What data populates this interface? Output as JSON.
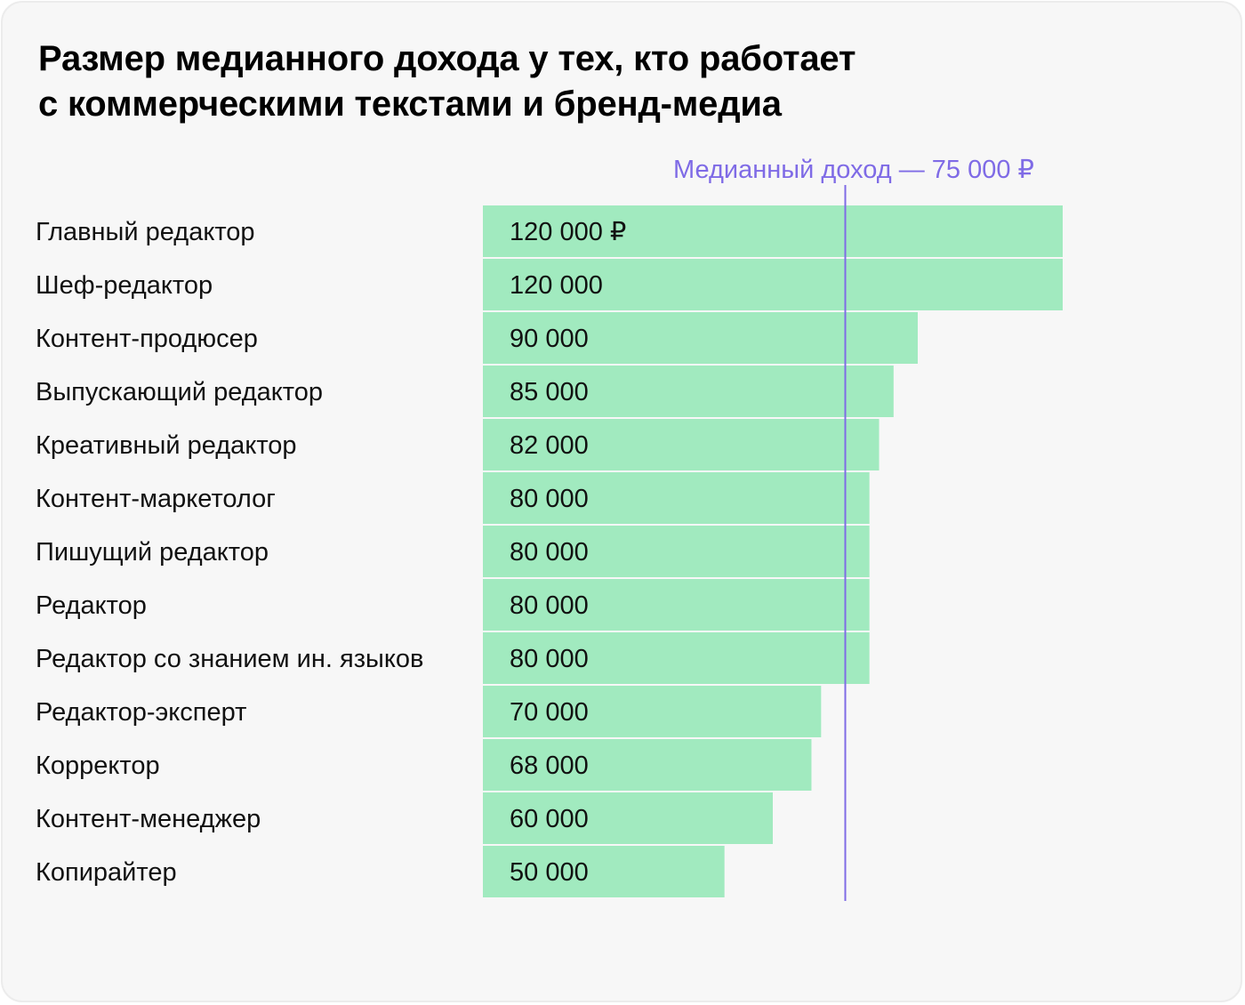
{
  "title": {
    "line1": "Размер медианного дохода у тех, кто работает",
    "line2": "с коммерческими текстами и бренд-медиа"
  },
  "colors": {
    "background": "#f7f7f7",
    "bar": "#a1eabf",
    "median_line": "#7f6be6",
    "text": "#111111"
  },
  "chart_data": {
    "type": "bar",
    "orientation": "horizontal",
    "categories": [
      "Главный редактор",
      "Шеф-редактор",
      "Контент-продюсер",
      "Выпускающий редактор",
      "Креативный редактор",
      "Контент-маркетолог",
      "Пишущий редактор",
      "Редактор",
      "Редактор со знанием ин. языков",
      "Редактор-эксперт",
      "Корректор",
      "Контент-менеджер",
      "Копирайтер"
    ],
    "values": [
      120000,
      120000,
      90000,
      85000,
      82000,
      80000,
      80000,
      80000,
      80000,
      70000,
      68000,
      60000,
      50000
    ],
    "value_labels": [
      "120 000 ₽",
      "120 000",
      "90 000",
      "85 000",
      "82 000",
      "80 000",
      "80 000",
      "80 000",
      "80 000",
      "70 000",
      "68 000",
      "60 000",
      "50 000"
    ],
    "reference_line": {
      "value": 75000,
      "label": "Медианный доход — 75 000 ₽"
    },
    "xlim": [
      0,
      120000
    ],
    "grid": false,
    "legend": false
  }
}
